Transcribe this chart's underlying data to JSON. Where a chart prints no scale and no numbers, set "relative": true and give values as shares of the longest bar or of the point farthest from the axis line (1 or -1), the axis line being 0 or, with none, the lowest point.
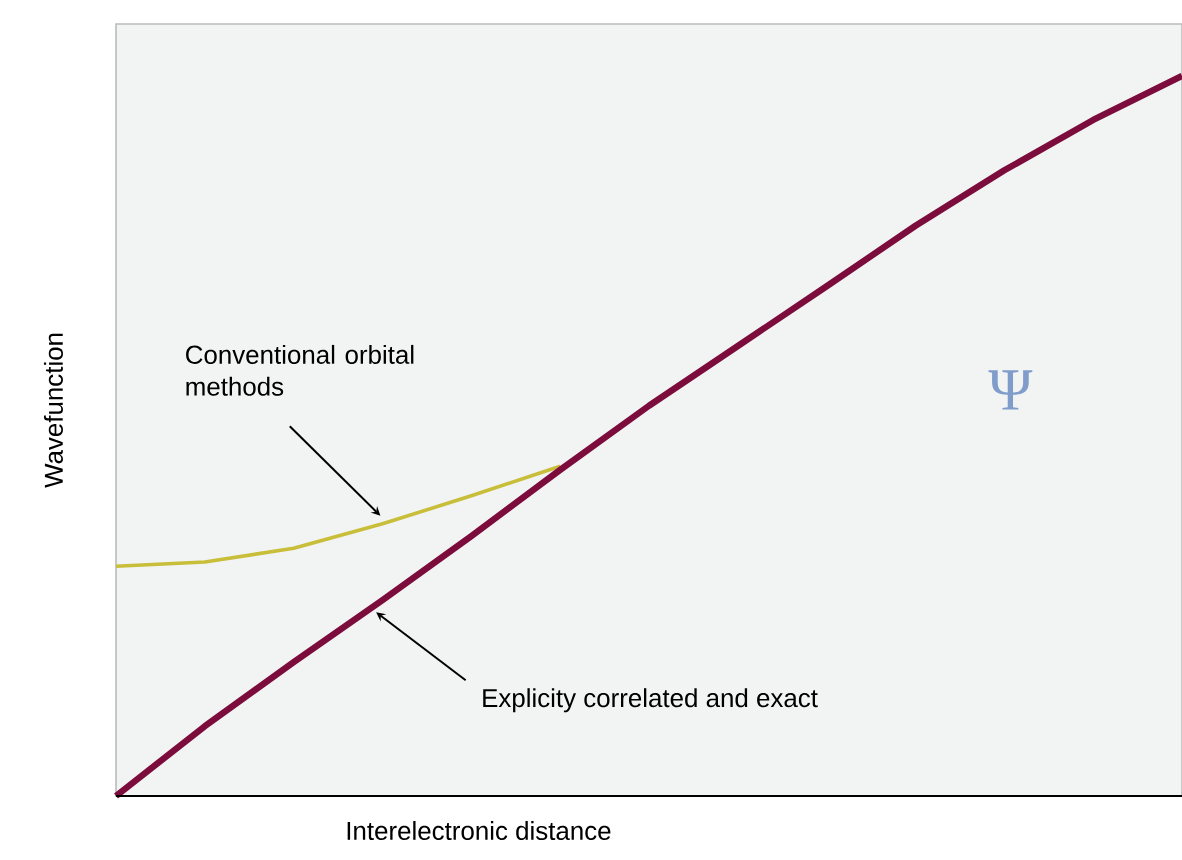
{
  "chart_data": {
    "type": "line",
    "relative": true,
    "xlabel": "Interelectronic distance",
    "ylabel": "Wavefunction",
    "categories": [
      null,
      null,
      null,
      null,
      null,
      null,
      null,
      null,
      null,
      null,
      null,
      null,
      null
    ],
    "series": [
      {
        "color": "#c8be3a",
        "values": [
          0.319,
          0.325,
          0.344,
          0.378,
          0.417,
          0.458,
          null,
          null,
          null,
          null,
          null,
          null,
          null
        ]
      },
      {
        "color": "#7b0c3c",
        "values": [
          0,
          0.097,
          0.186,
          0.272,
          0.361,
          0.453,
          0.542,
          0.625,
          0.708,
          0.792,
          0.869,
          0.939,
          1
        ]
      }
    ],
    "annotations": [
      "Conventional orbital methods",
      "Explicity correlated and exact",
      "Ψ"
    ]
  }
}
